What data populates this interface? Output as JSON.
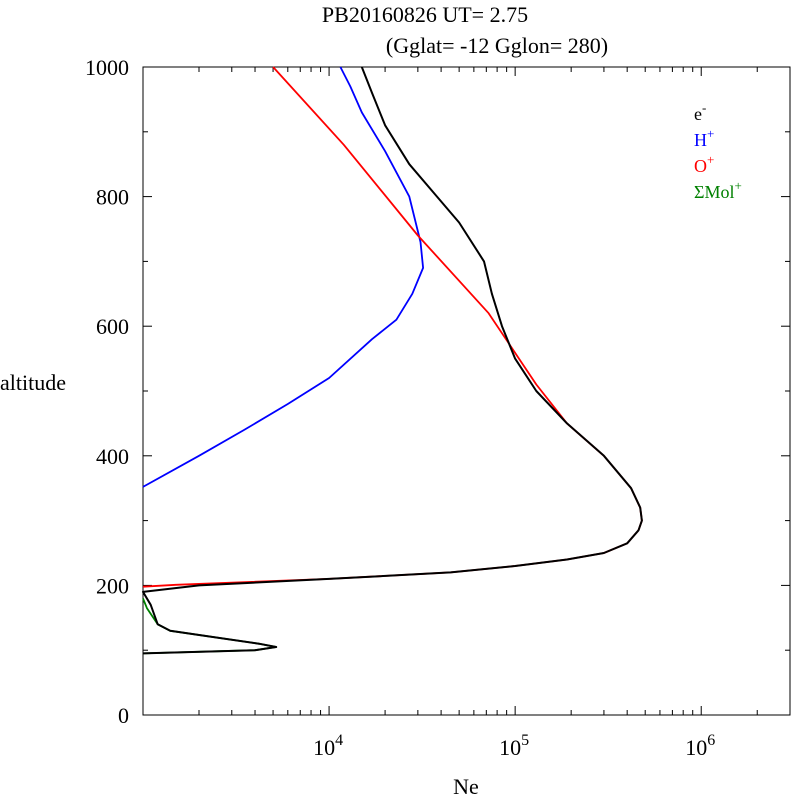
{
  "chart_data": {
    "type": "line",
    "title": "PB20160826   UT=  2.75",
    "subtitle": "(Gglat= -12   Gglon=  280)",
    "xlabel": "Ne",
    "ylabel": "altitude",
    "x_scale": "log",
    "xlim": [
      1000,
      3000000
    ],
    "ylim": [
      0,
      1000
    ],
    "yticks": [
      {
        "value": 0,
        "label": "0"
      },
      {
        "value": 200,
        "label": "200"
      },
      {
        "value": 400,
        "label": "400"
      },
      {
        "value": 600,
        "label": "600"
      },
      {
        "value": 800,
        "label": "800"
      },
      {
        "value": 1000,
        "label": "1000"
      }
    ],
    "xticks": [
      {
        "value": 10000,
        "base": "10",
        "exp": "4"
      },
      {
        "value": 100000,
        "base": "10",
        "exp": "5"
      },
      {
        "value": 1000000,
        "base": "10",
        "exp": "6"
      }
    ],
    "grid": false,
    "legend_position": "top-right",
    "series": [
      {
        "name": "e-",
        "label_base": "e",
        "label_sup": "-",
        "color": "#000000",
        "points": [
          [
            1000,
            95
          ],
          [
            4000,
            100
          ],
          [
            5200,
            105
          ],
          [
            4200,
            110
          ],
          [
            1400,
            130
          ],
          [
            1200,
            140
          ],
          [
            1100,
            170
          ],
          [
            1000,
            190
          ],
          [
            2000,
            200
          ],
          [
            10000,
            210
          ],
          [
            45000,
            220
          ],
          [
            100000,
            230
          ],
          [
            190000,
            240
          ],
          [
            300000,
            250
          ],
          [
            400000,
            265
          ],
          [
            460000,
            285
          ],
          [
            480000,
            300
          ],
          [
            470000,
            320
          ],
          [
            420000,
            350
          ],
          [
            300000,
            400
          ],
          [
            190000,
            450
          ],
          [
            130000,
            500
          ],
          [
            100000,
            550
          ],
          [
            85000,
            600
          ],
          [
            75000,
            650
          ],
          [
            68000,
            700
          ],
          [
            50000,
            760
          ],
          [
            38000,
            800
          ],
          [
            27000,
            850
          ],
          [
            20000,
            910
          ],
          [
            17000,
            960
          ],
          [
            15000,
            1000
          ]
        ]
      },
      {
        "name": "H+",
        "label_base": "H",
        "label_sup": "+",
        "color": "#0000ff",
        "points": [
          [
            1000,
            352
          ],
          [
            2000,
            400
          ],
          [
            3500,
            440
          ],
          [
            6000,
            480
          ],
          [
            10000,
            520
          ],
          [
            17000,
            580
          ],
          [
            23000,
            610
          ],
          [
            28000,
            650
          ],
          [
            32000,
            690
          ],
          [
            31000,
            730
          ],
          [
            27000,
            800
          ],
          [
            20000,
            870
          ],
          [
            15000,
            930
          ],
          [
            13000,
            970
          ],
          [
            11500,
            1000
          ]
        ]
      },
      {
        "name": "O+",
        "label_base": "O",
        "label_sup": "+",
        "color": "#ff0000",
        "points": [
          [
            1000,
            198
          ],
          [
            1500,
            201
          ],
          [
            10000,
            210
          ],
          [
            45000,
            220
          ],
          [
            100000,
            230
          ],
          [
            190000,
            240
          ],
          [
            300000,
            250
          ],
          [
            400000,
            265
          ],
          [
            460000,
            285
          ],
          [
            480000,
            300
          ],
          [
            470000,
            320
          ],
          [
            420000,
            350
          ],
          [
            300000,
            400
          ],
          [
            190000,
            450
          ],
          [
            130000,
            510
          ],
          [
            72000,
            620
          ],
          [
            30000,
            740
          ],
          [
            12000,
            880
          ],
          [
            5000,
            1000
          ]
        ]
      },
      {
        "name": "ΣMol+",
        "label_base": "ΣMol",
        "label_sup": "+",
        "color": "#008000",
        "points": [
          [
            1000,
            95
          ],
          [
            4000,
            100
          ],
          [
            5200,
            105
          ],
          [
            4200,
            110
          ],
          [
            1400,
            130
          ],
          [
            1200,
            140
          ],
          [
            1050,
            165
          ],
          [
            1000,
            180
          ]
        ]
      }
    ]
  }
}
